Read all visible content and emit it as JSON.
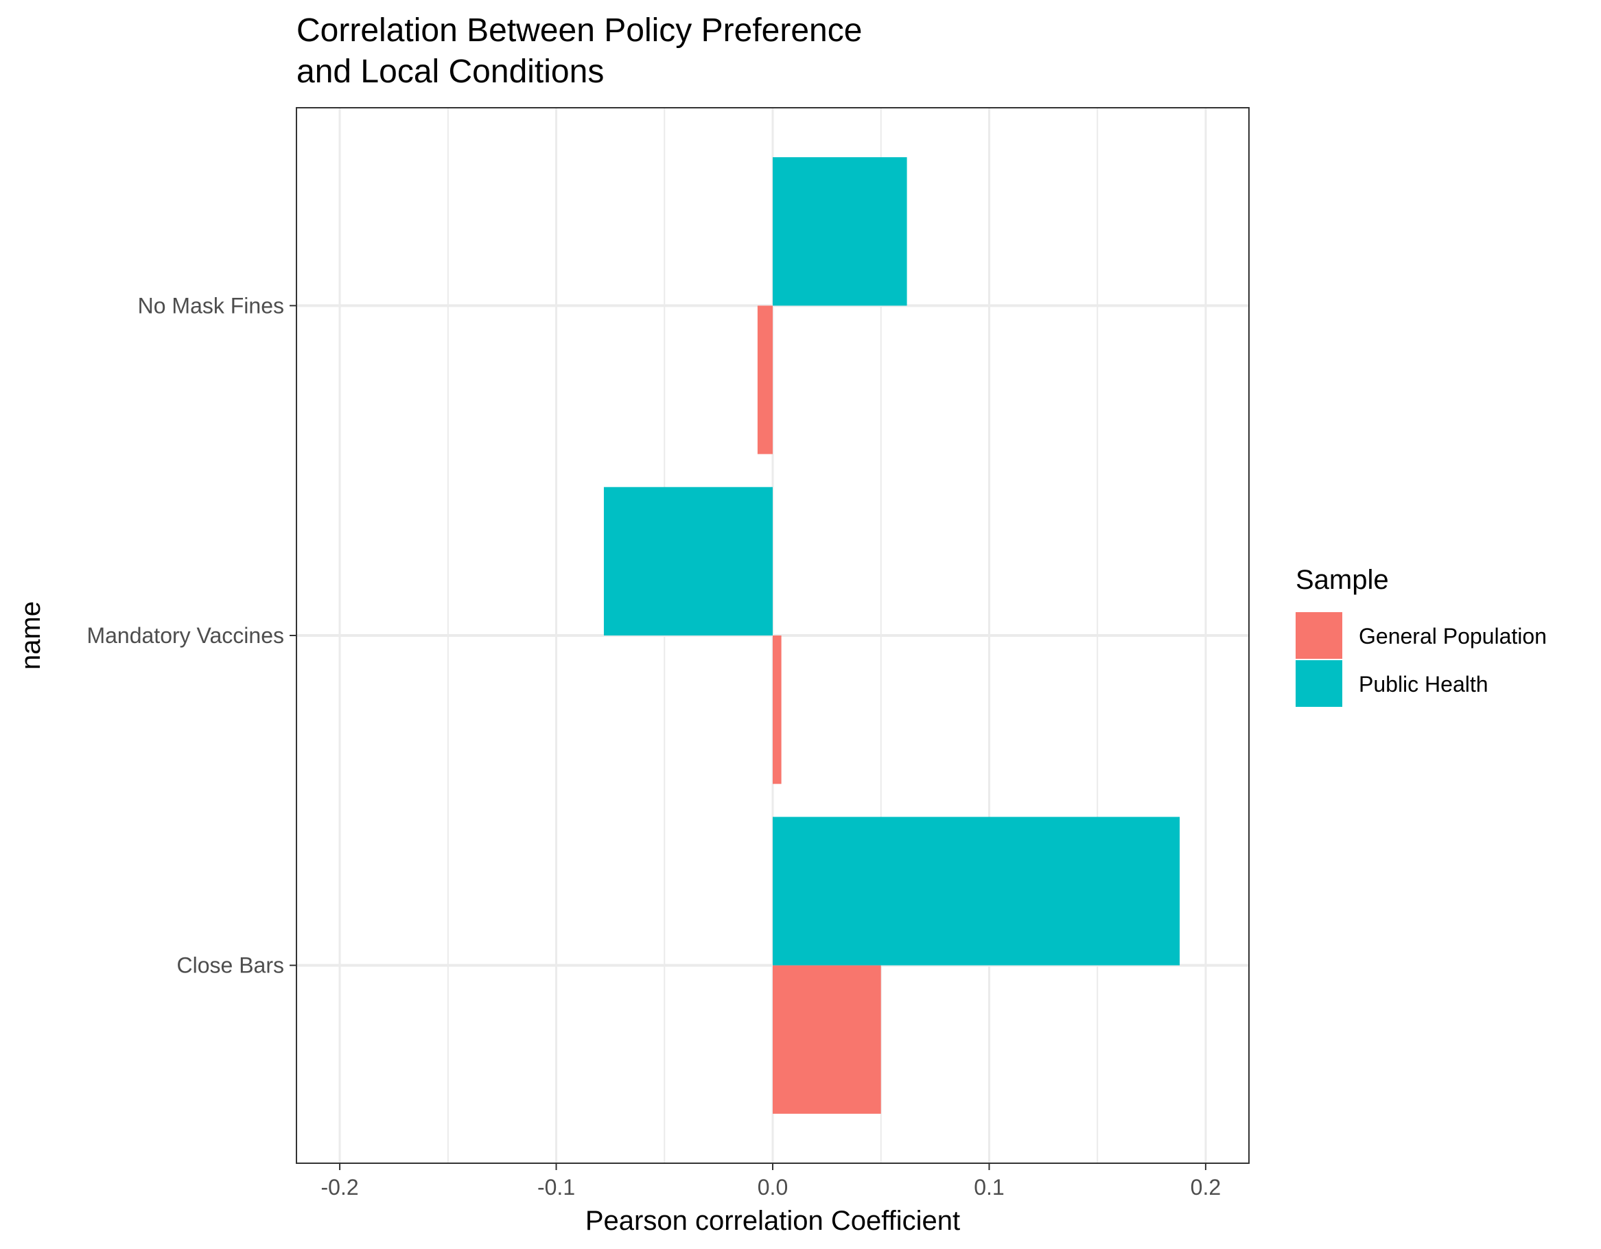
{
  "chart_data": {
    "type": "bar",
    "orientation": "horizontal",
    "title": [
      "Correlation Between Policy Preference",
      "and Local Conditions"
    ],
    "xlabel": "Pearson correlation Coefficient",
    "ylabel": "name",
    "xlim": [
      -0.22,
      0.22
    ],
    "x_ticks": [
      -0.2,
      -0.1,
      0.0,
      0.1,
      0.2
    ],
    "x_tick_labels": [
      "-0.2",
      "-0.1",
      "0.0",
      "0.1",
      "0.2"
    ],
    "categories": [
      "Close Bars",
      "Mandatory Vaccines",
      "No Mask Fines"
    ],
    "grid": true,
    "legend": {
      "title": "Sample",
      "position": "right"
    },
    "series": [
      {
        "name": "General Population",
        "color": "#F8766D",
        "values": [
          0.05,
          0.004,
          -0.007
        ]
      },
      {
        "name": "Public Health",
        "color": "#00BFC4",
        "values": [
          0.188,
          -0.078,
          0.062
        ]
      }
    ]
  }
}
